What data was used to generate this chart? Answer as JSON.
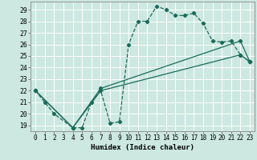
{
  "xlabel": "Humidex (Indice chaleur)",
  "bg_color": "#cce8e0",
  "line_color": "#1a6b5a",
  "grid_color": "#ffffff",
  "xlim": [
    -0.5,
    23.5
  ],
  "ylim": [
    18.5,
    29.7
  ],
  "xticks": [
    0,
    1,
    2,
    3,
    4,
    5,
    6,
    7,
    8,
    9,
    10,
    11,
    12,
    13,
    14,
    15,
    16,
    17,
    18,
    19,
    20,
    21,
    22,
    23
  ],
  "yticks": [
    19,
    20,
    21,
    22,
    23,
    24,
    25,
    26,
    27,
    28,
    29
  ],
  "curve1_x": [
    0,
    1,
    2,
    4,
    5,
    6,
    7,
    8,
    9,
    10,
    11,
    12,
    13,
    14,
    15,
    16,
    17,
    18,
    19,
    20,
    21,
    22,
    23
  ],
  "curve1_y": [
    22,
    21,
    20,
    18.8,
    18.8,
    21,
    22,
    19.2,
    19.3,
    26,
    28,
    28,
    29.3,
    29,
    28.5,
    28.5,
    28.7,
    27.8,
    26.3,
    26.2,
    26.3,
    25.1,
    24.5
  ],
  "curve2_x": [
    0,
    4,
    7,
    22,
    23
  ],
  "curve2_y": [
    22,
    18.8,
    22,
    25.1,
    24.5
  ],
  "curve3_x": [
    0,
    4,
    7,
    22,
    23
  ],
  "curve3_y": [
    22,
    18.8,
    22.2,
    26.3,
    24.5
  ],
  "curve4_x": [
    0,
    23
  ],
  "curve4_y": [
    22,
    24.5
  ]
}
